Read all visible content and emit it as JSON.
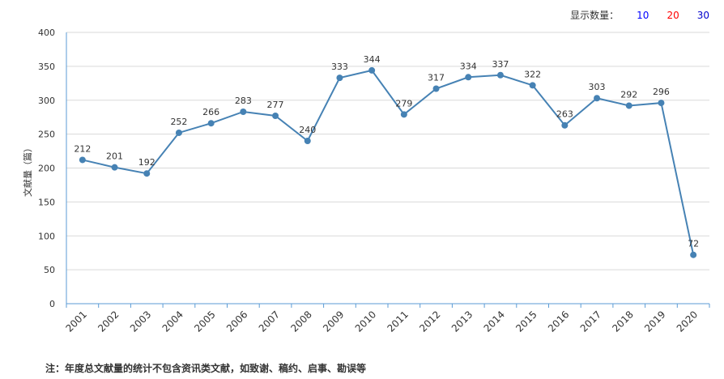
{
  "display_count": {
    "label": "显示数量：",
    "options": [
      {
        "label": "10",
        "color": "#0000ff"
      },
      {
        "label": "20",
        "color": "#ff0000"
      },
      {
        "label": "30",
        "color": "#0000cc"
      }
    ]
  },
  "footnote": "注：年度总文献量的统计不包含资讯类文献，如致谢、稿约、启事、勘误等",
  "chart_data": {
    "type": "line",
    "title": "",
    "xlabel": "",
    "ylabel": "文献量（篇）",
    "ylim": [
      0,
      400
    ],
    "yticks": [
      0,
      50,
      100,
      150,
      200,
      250,
      300,
      350,
      400
    ],
    "grid": true,
    "line_color": "#4682b4",
    "categories": [
      "2001",
      "2002",
      "2003",
      "2004",
      "2005",
      "2006",
      "2007",
      "2008",
      "2009",
      "2010",
      "2011",
      "2012",
      "2013",
      "2014",
      "2015",
      "2016",
      "2017",
      "2018",
      "2019",
      "2020"
    ],
    "values": [
      212,
      201,
      192,
      252,
      266,
      283,
      277,
      240,
      333,
      344,
      279,
      317,
      334,
      337,
      322,
      263,
      303,
      292,
      296,
      72
    ]
  }
}
